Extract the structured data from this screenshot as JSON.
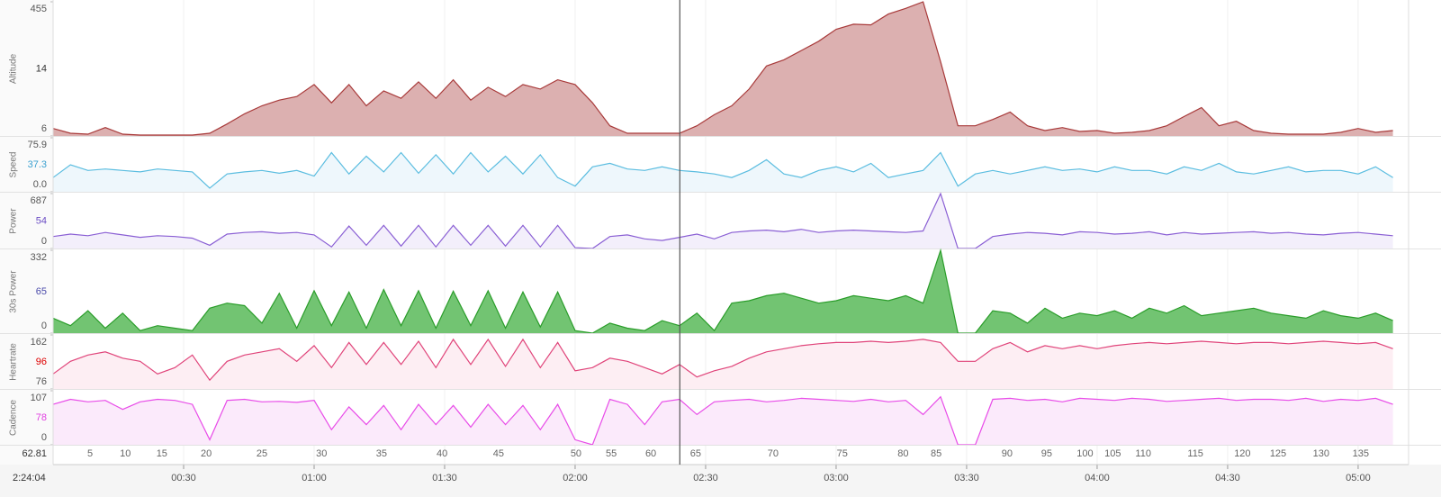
{
  "chart_data": {
    "type": "area",
    "xlim": [
      0,
      311.6
    ],
    "xticks": [
      {
        "value": 30,
        "label": "00:30"
      },
      {
        "value": 60,
        "label": "01:00"
      },
      {
        "value": 90,
        "label": "01:30"
      },
      {
        "value": 120,
        "label": "02:00"
      },
      {
        "value": 150,
        "label": "02:30"
      },
      {
        "value": 180,
        "label": "03:00"
      },
      {
        "value": 210,
        "label": "03:30"
      },
      {
        "value": 240,
        "label": "04:00"
      },
      {
        "value": 270,
        "label": "04:30"
      },
      {
        "value": 300,
        "label": "05:00"
      }
    ],
    "x": [
      0,
      4,
      8,
      12,
      16,
      20,
      24,
      28,
      32,
      36,
      40,
      44,
      48,
      52,
      56,
      60,
      64,
      68,
      72,
      76,
      80,
      84,
      88,
      92,
      96,
      100,
      104,
      108,
      112,
      116,
      120,
      124,
      128,
      132,
      136,
      140,
      144,
      148,
      152,
      156,
      160,
      164,
      168,
      172,
      176,
      180,
      184,
      188,
      192,
      196,
      200,
      204,
      208,
      212,
      216,
      220,
      224,
      228,
      232,
      236,
      240,
      244,
      248,
      252,
      256,
      260,
      264,
      268,
      272,
      276,
      280,
      284,
      288,
      292,
      296,
      300,
      304,
      308
    ],
    "cursor": {
      "label": "2:24:04",
      "value": 144.07
    },
    "cursor_distance": 62.81,
    "laps": {
      "x": [
        8.5,
        16.6,
        25.0,
        35.2,
        48.0,
        61.7,
        75.5,
        89.4,
        102.4,
        120.2,
        128.3,
        137.4,
        147.7,
        165.5,
        181.4,
        195.4,
        203.0,
        219.3,
        228.4,
        237.2,
        243.6,
        250.6,
        262.6,
        273.4,
        281.6,
        291.5,
        300.6
      ],
      "labels": [
        "5",
        "10",
        "15",
        "20",
        "25",
        "30",
        "35",
        "40",
        "45",
        "50",
        "55",
        "60",
        "65",
        "70",
        "75",
        "80",
        "85",
        "90",
        "95",
        "100",
        "105",
        "110",
        "115",
        "120",
        "125",
        "130",
        "135"
      ]
    },
    "series": [
      {
        "name": "Altitude",
        "color": "#a83a3a",
        "fill": "#dcb0b0",
        "ylim": [
          6,
          455
        ],
        "yticks": [
          6,
          455
        ],
        "cursor_value": 14,
        "cursor_color": "#333333",
        "values": [
          31,
          15,
          12,
          34,
          12,
          9,
          9,
          9,
          9,
          15,
          46,
          80,
          107,
          126,
          138,
          178,
          117,
          178,
          107,
          157,
          132,
          187,
          132,
          194,
          126,
          169,
          138,
          178,
          163,
          194,
          178,
          117,
          40,
          15,
          15,
          15,
          15,
          40,
          77,
          107,
          163,
          240,
          261,
          292,
          323,
          363,
          380,
          378,
          414,
          433,
          455,
          255,
          40,
          40,
          61,
          86,
          40,
          24,
          34,
          21,
          24,
          15,
          18,
          24,
          40,
          71,
          101,
          40,
          55,
          24,
          15,
          12,
          12,
          12,
          18,
          31,
          18,
          24
        ]
      },
      {
        "name": "Speed",
        "color": "#5bbde0",
        "fill": "#eef7fc",
        "ylim": [
          0,
          75.9
        ],
        "yticks": [
          {
            "value": 0,
            "label": "0.0"
          },
          75.9
        ],
        "cursor_value": 37.3,
        "cursor_color": "#3aa0d0",
        "values": [
          20,
          38,
          30,
          32,
          30,
          28,
          32,
          30,
          28,
          5,
          25,
          28,
          30,
          26,
          30,
          22,
          55,
          25,
          50,
          28,
          55,
          26,
          52,
          25,
          55,
          28,
          50,
          25,
          52,
          20,
          8,
          35,
          40,
          32,
          30,
          35,
          30,
          28,
          25,
          20,
          30,
          45,
          25,
          20,
          30,
          35,
          28,
          40,
          20,
          25,
          30,
          55,
          8,
          25,
          30,
          25,
          30,
          35,
          30,
          32,
          28,
          35,
          30,
          30,
          25,
          35,
          30,
          40,
          28,
          25,
          30,
          35,
          28,
          30,
          30,
          25,
          35,
          20
        ]
      },
      {
        "name": "Power",
        "color": "#8a5fd4",
        "fill": "#f3effb",
        "ylim": [
          0,
          687
        ],
        "yticks": [
          0,
          687
        ],
        "cursor_value": 54,
        "cursor_color": "#6a4cc4",
        "values": [
          150,
          180,
          160,
          200,
          170,
          140,
          160,
          150,
          130,
          40,
          180,
          200,
          210,
          190,
          200,
          170,
          20,
          280,
          40,
          290,
          30,
          290,
          20,
          290,
          40,
          290,
          30,
          290,
          20,
          290,
          10,
          0,
          150,
          170,
          120,
          100,
          140,
          180,
          120,
          200,
          220,
          230,
          210,
          240,
          200,
          220,
          230,
          220,
          210,
          200,
          220,
          687,
          0,
          0,
          150,
          180,
          200,
          190,
          170,
          210,
          200,
          180,
          190,
          210,
          170,
          200,
          180,
          190,
          200,
          210,
          190,
          200,
          180,
          170,
          190,
          200,
          180,
          160
        ]
      },
      {
        "name": "30s Power",
        "color": "#2a9d2a",
        "fill": "#72c472",
        "ylim": [
          0,
          332
        ],
        "yticks": [
          0,
          332
        ],
        "cursor_value": 65,
        "cursor_color": "#4a4aaa",
        "values": [
          60,
          30,
          90,
          20,
          80,
          10,
          30,
          20,
          10,
          100,
          120,
          110,
          40,
          160,
          20,
          170,
          30,
          165,
          20,
          175,
          30,
          170,
          20,
          168,
          30,
          170,
          20,
          165,
          25,
          165,
          10,
          0,
          40,
          20,
          10,
          50,
          30,
          80,
          10,
          120,
          130,
          150,
          160,
          140,
          120,
          130,
          150,
          140,
          130,
          150,
          120,
          332,
          0,
          0,
          90,
          80,
          40,
          100,
          60,
          80,
          70,
          90,
          60,
          100,
          80,
          110,
          70,
          80,
          90,
          100,
          80,
          70,
          60,
          90,
          70,
          60,
          80,
          50
        ]
      },
      {
        "name": "Heartrate",
        "color": "#e0447a",
        "fill": "#fdeef3",
        "ylim": [
          76,
          162
        ],
        "yticks": [
          76,
          162
        ],
        "cursor_value": 96,
        "cursor_color": "#dd0000",
        "values": [
          100,
          120,
          130,
          135,
          125,
          120,
          100,
          110,
          130,
          90,
          120,
          130,
          135,
          140,
          120,
          145,
          110,
          150,
          115,
          150,
          115,
          152,
          110,
          155,
          115,
          155,
          112,
          155,
          110,
          150,
          105,
          110,
          125,
          120,
          110,
          100,
          115,
          95,
          105,
          112,
          125,
          135,
          140,
          145,
          148,
          150,
          150,
          152,
          150,
          152,
          155,
          150,
          120,
          120,
          140,
          150,
          135,
          145,
          140,
          145,
          140,
          145,
          148,
          150,
          148,
          150,
          152,
          150,
          148,
          150,
          150,
          148,
          150,
          152,
          150,
          148,
          150,
          140
        ]
      },
      {
        "name": "Cadence",
        "color": "#e84ce8",
        "fill": "#fbeafb",
        "ylim": [
          0,
          107
        ],
        "yticks": [
          0,
          107
        ],
        "cursor_value": 78,
        "cursor_color": "#e040e0",
        "values": [
          80,
          90,
          85,
          88,
          70,
          85,
          90,
          88,
          80,
          10,
          88,
          90,
          85,
          86,
          84,
          88,
          30,
          75,
          40,
          78,
          30,
          80,
          40,
          78,
          35,
          80,
          40,
          78,
          30,
          80,
          10,
          0,
          90,
          80,
          40,
          85,
          90,
          60,
          85,
          88,
          90,
          85,
          88,
          92,
          90,
          88,
          86,
          90,
          85,
          88,
          60,
          95,
          0,
          0,
          90,
          92,
          88,
          90,
          85,
          92,
          90,
          88,
          92,
          90,
          86,
          88,
          90,
          92,
          88,
          90,
          90,
          88,
          92,
          86,
          90,
          88,
          92,
          80
        ]
      }
    ]
  }
}
